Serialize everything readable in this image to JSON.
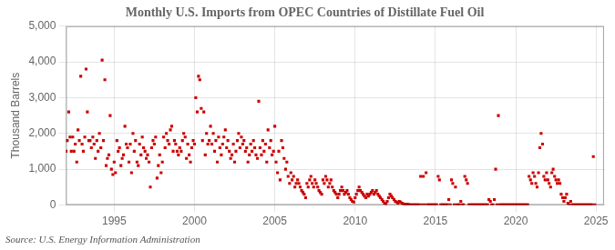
{
  "chart_data": {
    "type": "scatter",
    "title": "Monthly U.S. Imports from OPEC Countries of Distillate Fuel Oil",
    "ylabel": "Thousand Barrels",
    "annotation": "Source: U.S. Energy Information Administration",
    "color": "#cc0000",
    "marker": "square",
    "grid": true,
    "xlim": [
      1992.0,
      2025.5
    ],
    "ylim": [
      0,
      5000
    ],
    "xticks": [
      1995,
      2000,
      2005,
      2010,
      2015,
      2020,
      2025
    ],
    "yticks": [
      0,
      {
        "value": 1000,
        "label": "1,000"
      },
      {
        "value": 2000,
        "label": "2,000"
      },
      {
        "value": 3000,
        "label": "3,000"
      },
      {
        "value": 4000,
        "label": "4,000"
      },
      {
        "value": 5000,
        "label": "5,000"
      }
    ],
    "x": [
      1992.0,
      1992.08,
      1992.17,
      1992.25,
      1992.33,
      1992.42,
      1992.5,
      1992.58,
      1992.67,
      1992.75,
      1992.83,
      1992.92,
      1993.0,
      1993.08,
      1993.17,
      1993.25,
      1993.33,
      1993.42,
      1993.5,
      1993.58,
      1993.67,
      1993.75,
      1993.83,
      1993.92,
      1994.0,
      1994.08,
      1994.17,
      1994.25,
      1994.33,
      1994.42,
      1994.5,
      1994.58,
      1994.67,
      1994.75,
      1994.83,
      1994.92,
      1995.0,
      1995.08,
      1995.17,
      1995.25,
      1995.33,
      1995.42,
      1995.5,
      1995.58,
      1995.67,
      1995.75,
      1995.83,
      1995.92,
      1996.0,
      1996.08,
      1996.17,
      1996.25,
      1996.33,
      1996.42,
      1996.5,
      1996.58,
      1996.67,
      1996.75,
      1996.83,
      1996.92,
      1997.0,
      1997.08,
      1997.17,
      1997.25,
      1997.33,
      1997.42,
      1997.5,
      1997.58,
      1997.67,
      1997.75,
      1997.83,
      1997.92,
      1998.0,
      1998.08,
      1998.17,
      1998.25,
      1998.33,
      1998.42,
      1998.5,
      1998.58,
      1998.67,
      1998.75,
      1998.83,
      1998.92,
      1999.0,
      1999.08,
      1999.17,
      1999.25,
      1999.33,
      1999.42,
      1999.5,
      1999.58,
      1999.67,
      1999.75,
      1999.83,
      1999.92,
      2000.0,
      2000.08,
      2000.17,
      2000.25,
      2000.33,
      2000.42,
      2000.5,
      2000.58,
      2000.67,
      2000.75,
      2000.83,
      2000.92,
      2001.0,
      2001.08,
      2001.17,
      2001.25,
      2001.33,
      2001.42,
      2001.5,
      2001.58,
      2001.67,
      2001.75,
      2001.83,
      2001.92,
      2002.0,
      2002.08,
      2002.17,
      2002.25,
      2002.33,
      2002.42,
      2002.5,
      2002.58,
      2002.67,
      2002.75,
      2002.83,
      2002.92,
      2003.0,
      2003.08,
      2003.17,
      2003.25,
      2003.33,
      2003.42,
      2003.5,
      2003.58,
      2003.67,
      2003.75,
      2003.83,
      2003.92,
      2004.0,
      2004.08,
      2004.17,
      2004.25,
      2004.33,
      2004.42,
      2004.5,
      2004.58,
      2004.67,
      2004.75,
      2004.83,
      2004.92,
      2005.0,
      2005.08,
      2005.17,
      2005.25,
      2005.33,
      2005.42,
      2005.5,
      2005.58,
      2005.67,
      2005.75,
      2005.83,
      2005.92,
      2006.0,
      2006.08,
      2006.17,
      2006.25,
      2006.33,
      2006.42,
      2006.5,
      2006.58,
      2006.67,
      2006.75,
      2006.83,
      2006.92,
      2007.0,
      2007.08,
      2007.17,
      2007.25,
      2007.33,
      2007.42,
      2007.5,
      2007.58,
      2007.67,
      2007.75,
      2007.83,
      2007.92,
      2008.0,
      2008.08,
      2008.17,
      2008.25,
      2008.33,
      2008.42,
      2008.5,
      2008.58,
      2008.67,
      2008.75,
      2008.83,
      2008.92,
      2009.0,
      2009.08,
      2009.17,
      2009.25,
      2009.33,
      2009.42,
      2009.5,
      2009.58,
      2009.67,
      2009.75,
      2009.83,
      2009.92,
      2010.0,
      2010.08,
      2010.17,
      2010.25,
      2010.33,
      2010.42,
      2010.5,
      2010.58,
      2010.67,
      2010.75,
      2010.83,
      2010.92,
      2011.0,
      2011.08,
      2011.17,
      2011.25,
      2011.33,
      2011.42,
      2011.5,
      2011.58,
      2011.67,
      2011.75,
      2011.83,
      2011.92,
      2012.0,
      2012.08,
      2012.17,
      2012.25,
      2012.33,
      2012.42,
      2012.5,
      2012.58,
      2012.67,
      2012.75,
      2012.83,
      2012.92,
      2013.0,
      2013.08,
      2013.17,
      2013.25,
      2013.33,
      2013.42,
      2013.5,
      2013.58,
      2013.67,
      2013.75,
      2013.83,
      2013.92,
      2014.0,
      2014.08,
      2014.17,
      2014.25,
      2014.33,
      2014.42,
      2014.5,
      2014.58,
      2014.67,
      2014.75,
      2014.83,
      2014.92,
      2015.0,
      2015.08,
      2015.17,
      2015.25,
      2015.33,
      2015.42,
      2015.5,
      2015.58,
      2015.67,
      2015.75,
      2015.83,
      2015.92,
      2016.0,
      2016.08,
      2016.17,
      2016.25,
      2016.33,
      2016.42,
      2016.5,
      2016.58,
      2016.67,
      2016.75,
      2016.83,
      2016.92,
      2017.0,
      2017.08,
      2017.17,
      2017.25,
      2017.33,
      2017.42,
      2017.5,
      2017.58,
      2017.67,
      2017.75,
      2017.83,
      2017.92,
      2018.0,
      2018.08,
      2018.17,
      2018.25,
      2018.33,
      2018.42,
      2018.5,
      2018.58,
      2018.67,
      2018.75,
      2018.83,
      2018.92,
      2019.0,
      2019.08,
      2019.17,
      2019.25,
      2019.33,
      2019.42,
      2019.5,
      2019.58,
      2019.67,
      2019.75,
      2019.83,
      2019.92,
      2020.0,
      2020.08,
      2020.17,
      2020.25,
      2020.33,
      2020.42,
      2020.5,
      2020.58,
      2020.67,
      2020.75,
      2020.83,
      2020.92,
      2021.0,
      2021.08,
      2021.17,
      2021.25,
      2021.33,
      2021.42,
      2021.5,
      2021.58,
      2021.67,
      2021.75,
      2021.83,
      2021.92,
      2022.0,
      2022.08,
      2022.17,
      2022.25,
      2022.33,
      2022.42,
      2022.5,
      2022.58,
      2022.67,
      2022.75,
      2022.83,
      2022.92,
      2023.0,
      2023.08,
      2023.17,
      2023.25,
      2023.33,
      2023.42,
      2023.5,
      2023.58,
      2023.67,
      2023.75,
      2023.83,
      2023.92,
      2024.0,
      2024.08,
      2024.17,
      2024.25,
      2024.33,
      2024.42,
      2024.5,
      2024.58,
      2024.67,
      2024.75,
      2024.83,
      2024.92
    ],
    "values": [
      1500,
      1800,
      2600,
      1900,
      1500,
      1900,
      1500,
      1700,
      1200,
      2100,
      1800,
      3600,
      1700,
      1500,
      1900,
      3800,
      2600,
      1800,
      1800,
      1600,
      1900,
      1700,
      1300,
      1800,
      1500,
      2000,
      1600,
      4050,
      1800,
      3500,
      1100,
      1300,
      1400,
      2500,
      1000,
      850,
      1200,
      900,
      1800,
      1500,
      1600,
      1100,
      1300,
      1400,
      2200,
      1700,
      1600,
      1200,
      1700,
      900,
      2000,
      1500,
      1800,
      1200,
      1100,
      1700,
      1400,
      1900,
      1600,
      1500,
      1300,
      1400,
      1200,
      500,
      1600,
      1800,
      1700,
      1900,
      750,
      1100,
      1400,
      900,
      1200,
      1900,
      1600,
      2000,
      1800,
      1700,
      2100,
      2200,
      1500,
      1800,
      1700,
      1500,
      1400,
      1600,
      1500,
      1800,
      2000,
      1900,
      1300,
      1700,
      1400,
      1200,
      1600,
      1800,
      1700,
      3000,
      2600,
      3600,
      3500,
      2700,
      1800,
      2600,
      1400,
      2000,
      1700,
      1800,
      2200,
      1700,
      2000,
      1500,
      1800,
      1200,
      1900,
      1600,
      1400,
      1700,
      1900,
      2100,
      1600,
      1800,
      1500,
      1300,
      1400,
      1700,
      1200,
      1500,
      1800,
      2000,
      1600,
      1900,
      1700,
      1800,
      1500,
      1600,
      1200,
      1400,
      1700,
      1500,
      1800,
      1600,
      1400,
      1300,
      2900,
      1600,
      1400,
      1800,
      1500,
      1700,
      1200,
      2100,
      1600,
      1800,
      1400,
      1500,
      2200,
      1200,
      900,
      1500,
      700,
      1800,
      1600,
      1300,
      1000,
      1200,
      800,
      600,
      900,
      700,
      800,
      500,
      600,
      700,
      600,
      500,
      400,
      350,
      300,
      200,
      600,
      500,
      700,
      800,
      600,
      500,
      700,
      600,
      500,
      400,
      350,
      300,
      700,
      600,
      800,
      700,
      500,
      600,
      700,
      500,
      400,
      350,
      300,
      200,
      300,
      400,
      500,
      400,
      300,
      350,
      400,
      300,
      200,
      150,
      100,
      80,
      200,
      300,
      400,
      500,
      400,
      350,
      300,
      250,
      200,
      300,
      250,
      300,
      350,
      400,
      300,
      350,
      400,
      300,
      250,
      200,
      150,
      100,
      50,
      30,
      100,
      200,
      300,
      250,
      200,
      150,
      100,
      80,
      50,
      100,
      80,
      50,
      30,
      20,
      10,
      20,
      10,
      5,
      0,
      0,
      0,
      5,
      0,
      0,
      0,
      800,
      0,
      800,
      0,
      900,
      0,
      0,
      0,
      0,
      0,
      0,
      0,
      0,
      800,
      700,
      0,
      0,
      0,
      0,
      0,
      0,
      150,
      0,
      700,
      600,
      0,
      500,
      0,
      0,
      0,
      100,
      0,
      0,
      800,
      700,
      600,
      0,
      0,
      0,
      0,
      0,
      0,
      0,
      0,
      0,
      0,
      0,
      0,
      0,
      0,
      0,
      150,
      100,
      0,
      0,
      150,
      1000,
      0,
      2500,
      0,
      0,
      0,
      0,
      0,
      0,
      0,
      0,
      0,
      0,
      0,
      0,
      0,
      0,
      0,
      0,
      0,
      0,
      0,
      0,
      0,
      0,
      800,
      700,
      600,
      900,
      800,
      600,
      500,
      900,
      1600,
      2000,
      1700,
      800,
      700,
      900,
      700,
      600,
      500,
      900,
      1000,
      800,
      700,
      600,
      700,
      600,
      300,
      200,
      100,
      200,
      300,
      50,
      0,
      100,
      0,
      0,
      0,
      0,
      0,
      0,
      0,
      0,
      0,
      0,
      0,
      0,
      0,
      0,
      0,
      0,
      1350,
      0
    ]
  }
}
